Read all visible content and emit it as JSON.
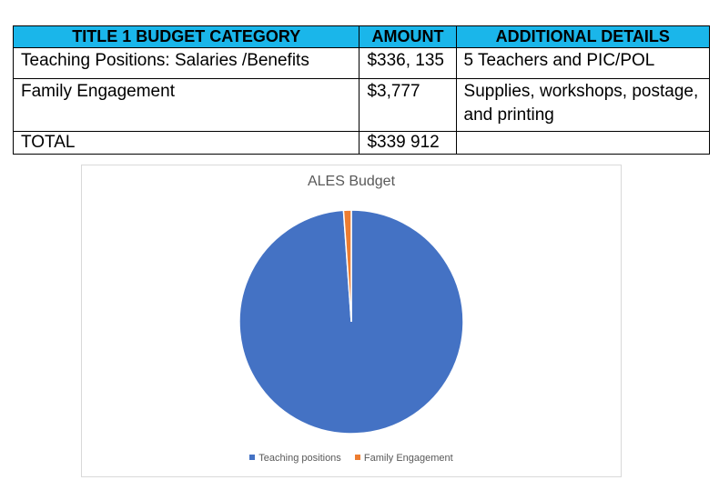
{
  "table": {
    "headers": [
      "TITLE 1 BUDGET CATEGORY",
      "AMOUNT",
      "ADDITIONAL DETAILS"
    ],
    "rows": [
      {
        "category": "Teaching Positions: Salaries /Benefits",
        "amount": "$336, 135",
        "details": "5 Teachers and PIC/POL"
      },
      {
        "category": "Family Engagement",
        "amount": "$3,777",
        "details": "Supplies, workshops, postage, and printing"
      },
      {
        "category": "TOTAL",
        "amount": "$339 912",
        "details": ""
      }
    ],
    "header_color": "#1ab6ea"
  },
  "chart_data": {
    "type": "pie",
    "title": "ALES Budget",
    "categories": [
      "Teaching positions",
      "Family Engagement"
    ],
    "values": [
      336135,
      3777
    ],
    "colors": [
      "#4472c4",
      "#ed7d31"
    ],
    "legend_position": "bottom"
  }
}
